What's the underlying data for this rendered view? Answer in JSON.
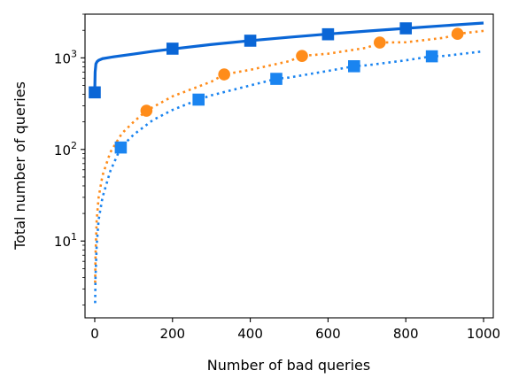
{
  "chart_data": {
    "type": "line",
    "xlabel": "Number of bad queries",
    "ylabel": "Total number of queries",
    "xlim": [
      -25,
      1025
    ],
    "ylim": [
      1.45,
      3000
    ],
    "yscale": "log",
    "x_ticks": [
      0,
      200,
      400,
      600,
      800,
      1000
    ],
    "y_ticks": [
      {
        "value": 10,
        "base": "10",
        "exp": "1"
      },
      {
        "value": 100,
        "base": "10",
        "exp": "2"
      },
      {
        "value": 1000,
        "base": "10",
        "exp": "3"
      }
    ],
    "grid": false,
    "legend": "none",
    "series": [
      {
        "color": "#0a66d6",
        "line_style": "solid",
        "marker": "square",
        "line": [
          [
            0,
            420
          ],
          [
            1,
            700
          ],
          [
            3,
            860
          ],
          [
            6,
            910
          ],
          [
            10,
            940
          ],
          [
            20,
            980
          ],
          [
            50,
            1030
          ],
          [
            100,
            1100
          ],
          [
            150,
            1180
          ],
          [
            200,
            1250
          ],
          [
            300,
            1400
          ],
          [
            400,
            1540
          ],
          [
            500,
            1680
          ],
          [
            600,
            1820
          ],
          [
            700,
            1960
          ],
          [
            800,
            2100
          ],
          [
            900,
            2250
          ],
          [
            1000,
            2400
          ]
        ],
        "markers": [
          [
            0,
            420
          ],
          [
            200,
            1260
          ],
          [
            400,
            1540
          ],
          [
            600,
            1810
          ],
          [
            800,
            2100
          ]
        ]
      },
      {
        "color": "#ff8c1a",
        "line_style": "dotted",
        "marker": "circle",
        "line": [
          [
            1,
            3.5
          ],
          [
            2,
            7
          ],
          [
            5,
            17
          ],
          [
            10,
            30
          ],
          [
            20,
            52
          ],
          [
            40,
            93
          ],
          [
            70,
            150
          ],
          [
            100,
            200
          ],
          [
            133,
            265
          ],
          [
            200,
            380
          ],
          [
            300,
            550
          ],
          [
            333,
            660
          ],
          [
            400,
            740
          ],
          [
            500,
            920
          ],
          [
            533,
            1050
          ],
          [
            600,
            1110
          ],
          [
            700,
            1290
          ],
          [
            733,
            1470
          ],
          [
            800,
            1480
          ],
          [
            900,
            1660
          ],
          [
            933,
            1830
          ],
          [
            1000,
            1970
          ]
        ],
        "markers": [
          [
            133,
            265
          ],
          [
            333,
            660
          ],
          [
            533,
            1050
          ],
          [
            733,
            1470
          ],
          [
            933,
            1830
          ]
        ]
      },
      {
        "color": "#1a84f0",
        "line_style": "dotted",
        "marker": "square",
        "line": [
          [
            1,
            2.1
          ],
          [
            2,
            4
          ],
          [
            5,
            9
          ],
          [
            10,
            17
          ],
          [
            20,
            30
          ],
          [
            40,
            58
          ],
          [
            67,
            105
          ],
          [
            100,
            145
          ],
          [
            150,
            210
          ],
          [
            200,
            270
          ],
          [
            267,
            350
          ],
          [
            300,
            390
          ],
          [
            400,
            500
          ],
          [
            467,
            590
          ],
          [
            500,
            610
          ],
          [
            600,
            720
          ],
          [
            667,
            810
          ],
          [
            700,
            830
          ],
          [
            800,
            940
          ],
          [
            867,
            1040
          ],
          [
            900,
            1050
          ],
          [
            1000,
            1180
          ]
        ],
        "markers": [
          [
            67,
            105
          ],
          [
            267,
            350
          ],
          [
            467,
            590
          ],
          [
            667,
            810
          ],
          [
            867,
            1040
          ]
        ]
      }
    ]
  }
}
